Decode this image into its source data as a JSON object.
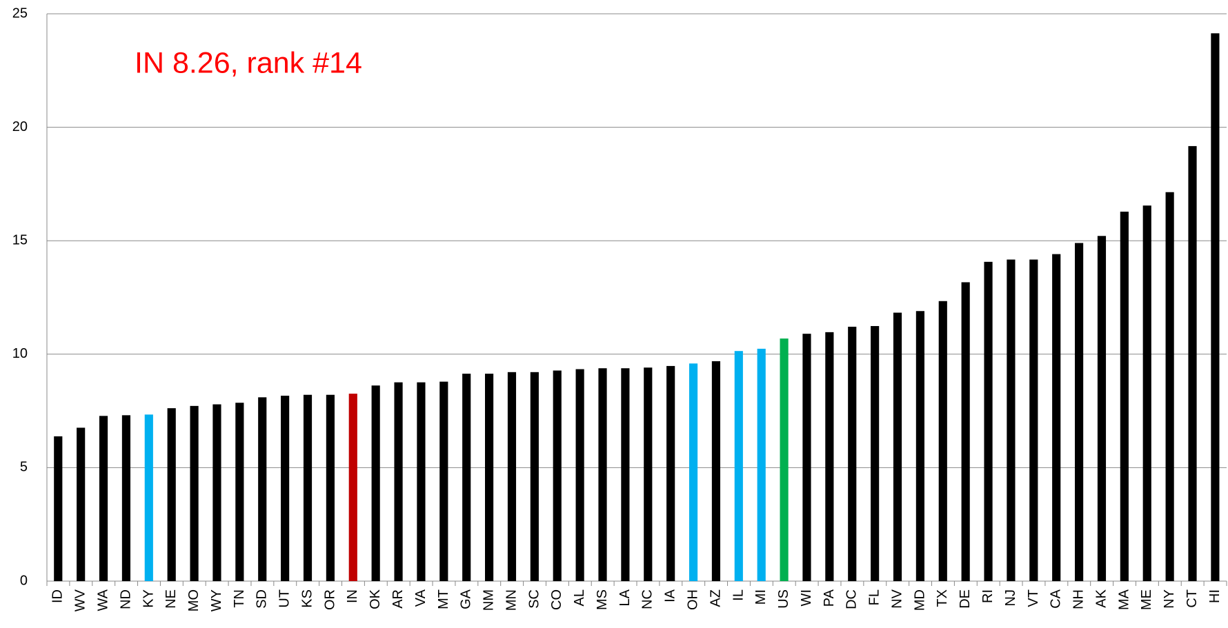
{
  "chart_data": {
    "type": "bar",
    "annotation": "IN 8.26, rank #14",
    "categories": [
      "ID",
      "WV",
      "WA",
      "ND",
      "KY",
      "NE",
      "MO",
      "WY",
      "TN",
      "SD",
      "UT",
      "KS",
      "OR",
      "IN",
      "OK",
      "AR",
      "VA",
      "MT",
      "GA",
      "NM",
      "MN",
      "SC",
      "CO",
      "AL",
      "MS",
      "LA",
      "NC",
      "IA",
      "OH",
      "AZ",
      "IL",
      "MI",
      "US",
      "WI",
      "PA",
      "DC",
      "FL",
      "NV",
      "MD",
      "TX",
      "DE",
      "RI",
      "NJ",
      "VT",
      "CA",
      "NH",
      "AK",
      "MA",
      "ME",
      "NY",
      "CT",
      "HI"
    ],
    "values": [
      6.38,
      6.76,
      7.28,
      7.31,
      7.34,
      7.62,
      7.72,
      7.79,
      7.86,
      8.1,
      8.17,
      8.21,
      8.21,
      8.26,
      8.62,
      8.76,
      8.76,
      8.79,
      9.14,
      9.14,
      9.21,
      9.21,
      9.28,
      9.34,
      9.38,
      9.38,
      9.41,
      9.48,
      9.59,
      9.69,
      10.14,
      10.24,
      10.69,
      10.9,
      10.97,
      11.21,
      11.24,
      11.83,
      11.9,
      12.34,
      13.17,
      14.07,
      14.17,
      14.17,
      14.41,
      14.9,
      15.21,
      16.28,
      16.55,
      17.14,
      19.17,
      24.14
    ],
    "colors": [
      "#000000",
      "#000000",
      "#000000",
      "#000000",
      "#00b0f0",
      "#000000",
      "#000000",
      "#000000",
      "#000000",
      "#000000",
      "#000000",
      "#000000",
      "#000000",
      "#c00000",
      "#000000",
      "#000000",
      "#000000",
      "#000000",
      "#000000",
      "#000000",
      "#000000",
      "#000000",
      "#000000",
      "#000000",
      "#000000",
      "#000000",
      "#000000",
      "#000000",
      "#00b0f0",
      "#000000",
      "#00b0f0",
      "#00b0f0",
      "#00b050",
      "#000000",
      "#000000",
      "#000000",
      "#000000",
      "#000000",
      "#000000",
      "#000000",
      "#000000",
      "#000000",
      "#000000",
      "#000000",
      "#000000",
      "#000000",
      "#000000",
      "#000000",
      "#000000",
      "#000000",
      "#000000",
      "#000000"
    ],
    "ylim": [
      0,
      25
    ],
    "yticks": [
      0,
      5,
      10,
      15,
      20,
      25
    ],
    "grid": true
  }
}
